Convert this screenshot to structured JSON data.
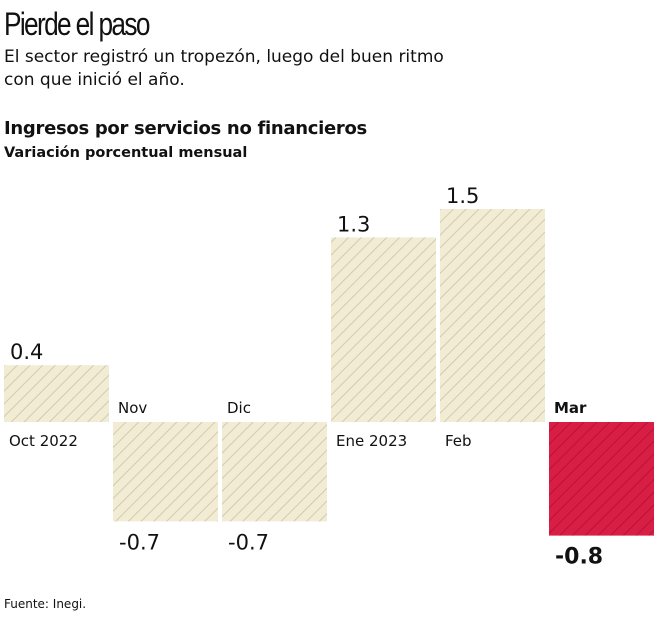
{
  "title": "Pierde el paso",
  "subtitle": "El sector registró un tropezón, luego del buen ritmo con que inició el año.",
  "chart_data": {
    "type": "bar",
    "title": "Ingresos por servicios no financieros",
    "subtitle": "Variación porcentual mensual",
    "categories": [
      "Oct 2022",
      "Nov",
      "Dic",
      "Ene 2023",
      "Feb",
      "Mar"
    ],
    "values": [
      0.4,
      -0.7,
      -0.7,
      1.3,
      1.5,
      -0.8
    ],
    "value_labels": [
      "0.4",
      "-0.7",
      "-0.7",
      "1.3",
      "1.5",
      "-0.8"
    ],
    "highlight_index": 5,
    "colors": {
      "default": "#f1ecd3",
      "default_stripe": "#c9c2a6",
      "highlight": "#d81e45",
      "highlight_stripe": "#b0102f"
    }
  },
  "source": "Fuente: Inegi."
}
